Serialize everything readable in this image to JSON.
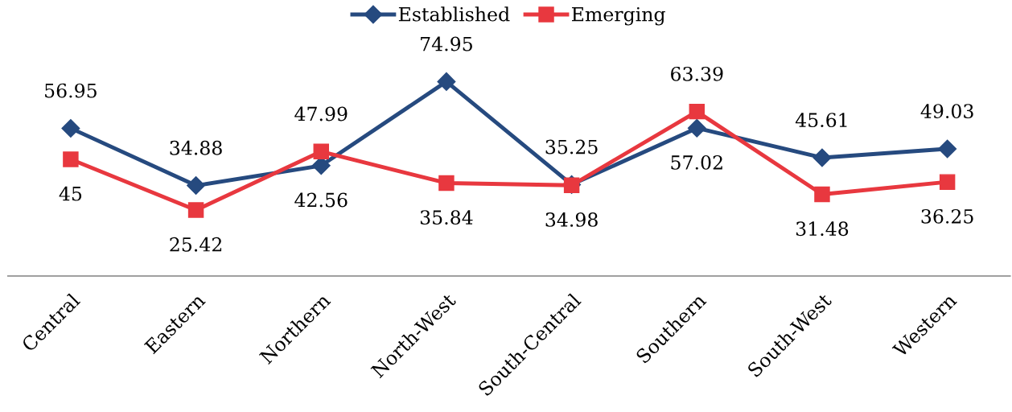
{
  "chart_data": {
    "type": "line",
    "categories": [
      "Central",
      "Eastern",
      "Northern",
      "North-West",
      "South-Central",
      "Southern",
      "South-West",
      "Western"
    ],
    "series": [
      {
        "name": "Established",
        "color": "#264a7f",
        "marker": "diamond",
        "values": [
          56.95,
          34.88,
          42.56,
          74.95,
          35.25,
          57.02,
          45.61,
          49.03
        ]
      },
      {
        "name": "Emerging",
        "color": "#e8383f",
        "marker": "square",
        "values": [
          45,
          25.42,
          47.99,
          35.84,
          34.98,
          63.39,
          31.48,
          36.25
        ]
      }
    ],
    "tick_labels": "x",
    "data_labels": true,
    "legend": "top",
    "grid": false,
    "line_style": "solid"
  }
}
